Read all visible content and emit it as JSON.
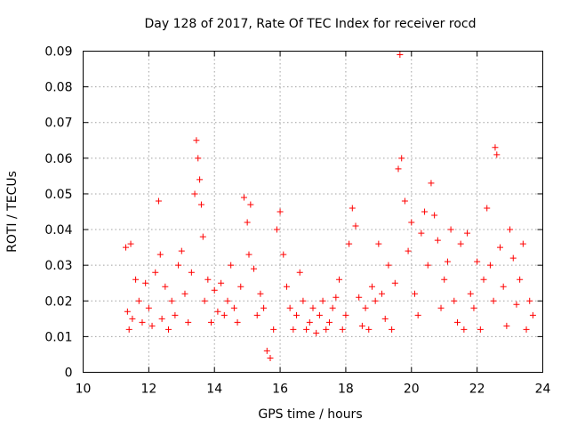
{
  "chart_data": {
    "type": "scatter",
    "title": "Day 128 of 2017, Rate Of TEC Index for receiver rocd",
    "xlabel": "GPS time / hours",
    "ylabel": "ROTI / TECUs",
    "xlim": [
      10,
      24
    ],
    "ylim": [
      0,
      0.09
    ],
    "x_ticks": [
      10,
      12,
      14,
      16,
      18,
      20,
      22,
      24
    ],
    "y_ticks": [
      0,
      0.01,
      0.02,
      0.03,
      0.04,
      0.05,
      0.06,
      0.07,
      0.08,
      0.09
    ],
    "x_tick_labels": [
      "10",
      "12",
      "14",
      "16",
      "18",
      "20",
      "22",
      "24"
    ],
    "y_tick_labels": [
      "0",
      "0.01",
      "0.02",
      "0.03",
      "0.04",
      "0.05",
      "0.06",
      "0.07",
      "0.08",
      "0.09"
    ],
    "grid": true,
    "marker": "+",
    "color": "#ff0000",
    "series": [
      {
        "name": "ROTI",
        "x": [
          11.3,
          11.35,
          11.4,
          11.45,
          11.5,
          11.6,
          11.7,
          11.8,
          11.9,
          12.0,
          12.1,
          12.2,
          12.3,
          12.35,
          12.4,
          12.5,
          12.6,
          12.7,
          12.8,
          12.9,
          13.0,
          13.1,
          13.2,
          13.3,
          13.4,
          13.45,
          13.5,
          13.55,
          13.6,
          13.65,
          13.7,
          13.8,
          13.9,
          14.0,
          14.1,
          14.2,
          14.3,
          14.4,
          14.5,
          14.6,
          14.7,
          14.8,
          14.9,
          15.0,
          15.05,
          15.1,
          15.2,
          15.3,
          15.4,
          15.5,
          15.6,
          15.7,
          15.8,
          15.9,
          16.0,
          16.1,
          16.2,
          16.3,
          16.4,
          16.5,
          16.6,
          16.7,
          16.8,
          16.9,
          17.0,
          17.1,
          17.2,
          17.3,
          17.4,
          17.5,
          17.6,
          17.7,
          17.8,
          17.9,
          18.0,
          18.1,
          18.2,
          18.3,
          18.4,
          18.5,
          18.6,
          18.7,
          18.8,
          18.9,
          19.0,
          19.1,
          19.2,
          19.3,
          19.4,
          19.5,
          19.6,
          19.65,
          19.7,
          19.8,
          19.9,
          20.0,
          20.1,
          20.2,
          20.3,
          20.4,
          20.5,
          20.6,
          20.7,
          20.8,
          20.9,
          21.0,
          21.1,
          21.2,
          21.3,
          21.4,
          21.5,
          21.6,
          21.7,
          21.8,
          21.9,
          22.0,
          22.1,
          22.2,
          22.3,
          22.4,
          22.5,
          22.55,
          22.6,
          22.7,
          22.8,
          22.9,
          23.0,
          23.1,
          23.2,
          23.3,
          23.4,
          23.5,
          23.6,
          23.7
        ],
        "y": [
          0.035,
          0.017,
          0.012,
          0.036,
          0.015,
          0.026,
          0.02,
          0.014,
          0.025,
          0.018,
          0.013,
          0.028,
          0.048,
          0.033,
          0.015,
          0.024,
          0.012,
          0.02,
          0.016,
          0.03,
          0.034,
          0.022,
          0.014,
          0.028,
          0.05,
          0.065,
          0.06,
          0.054,
          0.047,
          0.038,
          0.02,
          0.026,
          0.014,
          0.023,
          0.017,
          0.025,
          0.016,
          0.02,
          0.03,
          0.018,
          0.014,
          0.024,
          0.049,
          0.042,
          0.033,
          0.047,
          0.029,
          0.016,
          0.022,
          0.018,
          0.006,
          0.004,
          0.012,
          0.04,
          0.045,
          0.033,
          0.024,
          0.018,
          0.012,
          0.016,
          0.028,
          0.02,
          0.012,
          0.014,
          0.018,
          0.011,
          0.016,
          0.02,
          0.012,
          0.014,
          0.018,
          0.021,
          0.026,
          0.012,
          0.016,
          0.036,
          0.046,
          0.041,
          0.021,
          0.013,
          0.018,
          0.012,
          0.024,
          0.02,
          0.036,
          0.022,
          0.015,
          0.03,
          0.012,
          0.025,
          0.057,
          0.089,
          0.06,
          0.048,
          0.034,
          0.042,
          0.022,
          0.016,
          0.039,
          0.045,
          0.03,
          0.053,
          0.044,
          0.037,
          0.018,
          0.026,
          0.031,
          0.04,
          0.02,
          0.014,
          0.036,
          0.012,
          0.039,
          0.022,
          0.018,
          0.031,
          0.012,
          0.026,
          0.046,
          0.03,
          0.02,
          0.063,
          0.061,
          0.035,
          0.024,
          0.013,
          0.04,
          0.032,
          0.019,
          0.026,
          0.036,
          0.012,
          0.02,
          0.016
        ]
      }
    ]
  }
}
